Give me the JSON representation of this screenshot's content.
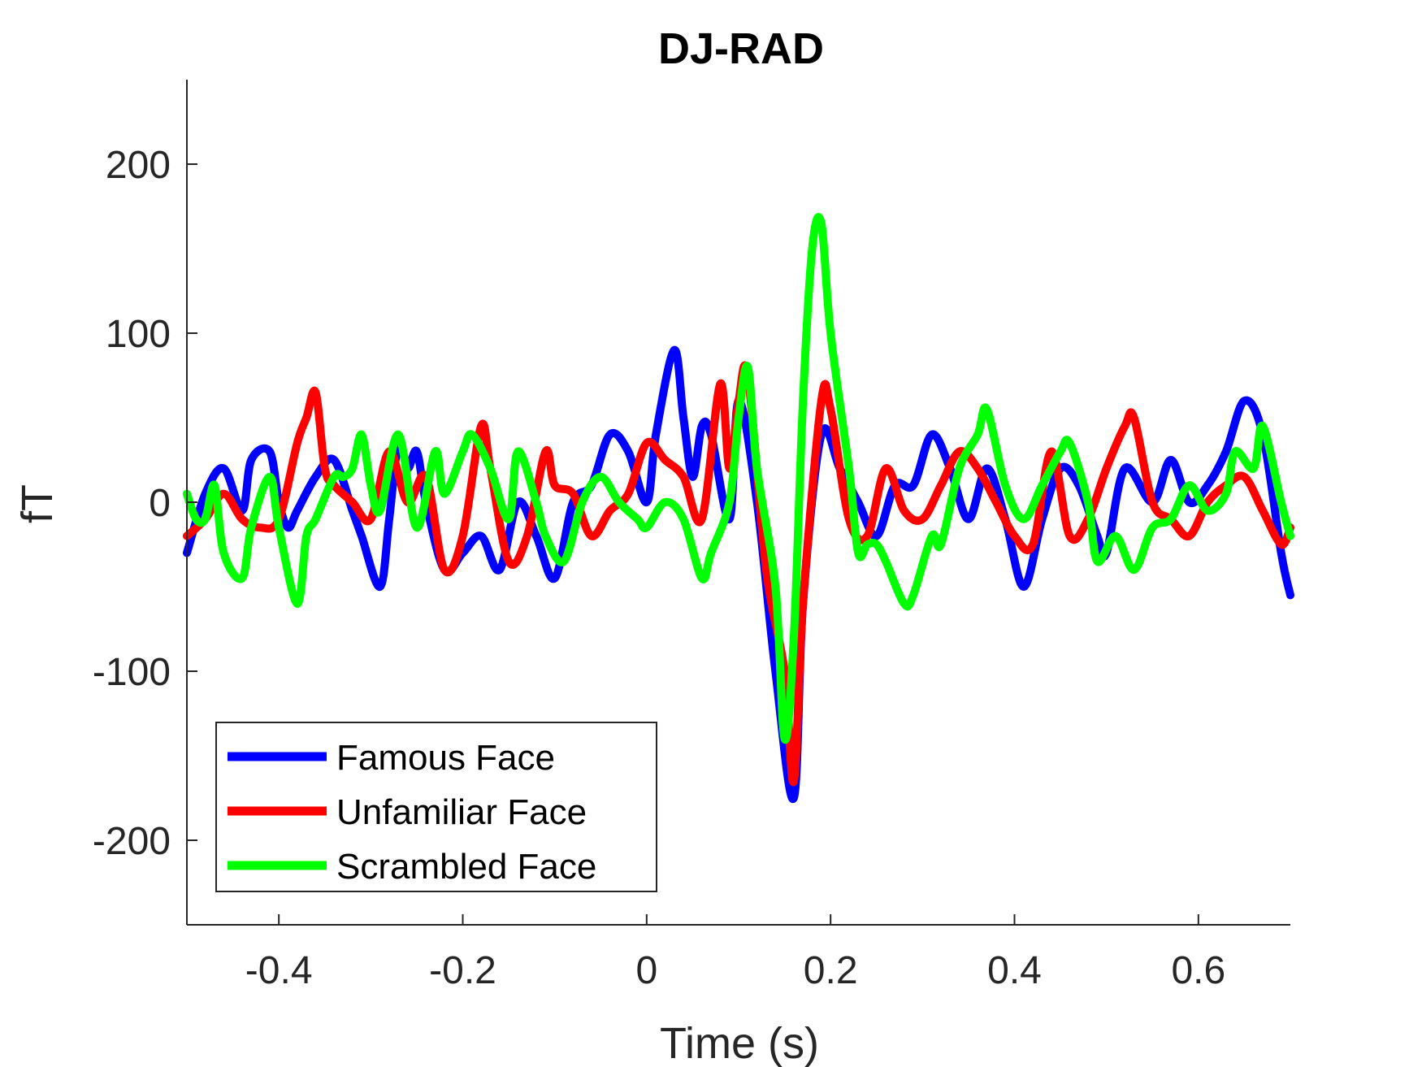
{
  "chart_data": {
    "type": "line",
    "title": "DJ-RAD",
    "xlabel": "Time (s)",
    "ylabel": "fT",
    "xlim": [
      -0.5,
      0.7
    ],
    "ylim": [
      -250,
      250
    ],
    "xticks": [
      -0.4,
      -0.2,
      0,
      0.2,
      0.4,
      0.6
    ],
    "xtick_labels": [
      "-0.4",
      "-0.2",
      "0",
      "0.2",
      "0.4",
      "0.6"
    ],
    "yticks": [
      -200,
      -100,
      0,
      100,
      200
    ],
    "ytick_labels": [
      "-200",
      "-100",
      "0",
      "100",
      "200"
    ],
    "grid": false,
    "legend_position": "bottom-left",
    "series": [
      {
        "name": "Famous Face",
        "color": "#0000ff",
        "x": [
          -0.5,
          -0.48,
          -0.46,
          -0.44,
          -0.43,
          -0.41,
          -0.4,
          -0.39,
          -0.38,
          -0.36,
          -0.34,
          -0.32,
          -0.31,
          -0.29,
          -0.28,
          -0.27,
          -0.26,
          -0.25,
          -0.24,
          -0.22,
          -0.2,
          -0.18,
          -0.16,
          -0.14,
          -0.12,
          -0.1,
          -0.08,
          -0.06,
          -0.04,
          -0.02,
          0,
          0.01,
          0.03,
          0.04,
          0.05,
          0.06,
          0.07,
          0.09,
          0.1,
          0.12,
          0.14,
          0.16,
          0.17,
          0.19,
          0.21,
          0.23,
          0.25,
          0.27,
          0.29,
          0.31,
          0.33,
          0.35,
          0.37,
          0.39,
          0.41,
          0.43,
          0.45,
          0.47,
          0.49,
          0.5,
          0.52,
          0.55,
          0.57,
          0.59,
          0.61,
          0.63,
          0.65,
          0.67,
          0.69,
          0.7
        ],
        "y": [
          -30,
          5,
          20,
          -5,
          25,
          30,
          0,
          -15,
          -5,
          15,
          25,
          -5,
          -20,
          -50,
          -10,
          35,
          20,
          30,
          0,
          -40,
          -30,
          -20,
          -40,
          0,
          -20,
          -45,
          0,
          10,
          40,
          30,
          0,
          40,
          90,
          50,
          15,
          45,
          40,
          -10,
          60,
          0,
          -100,
          -175,
          -60,
          40,
          20,
          0,
          -20,
          10,
          10,
          40,
          20,
          -10,
          20,
          -10,
          -50,
          -10,
          20,
          10,
          -20,
          -30,
          20,
          0,
          25,
          0,
          10,
          30,
          60,
          40,
          -30,
          -55
        ]
      },
      {
        "name": "Unfamiliar Face",
        "color": "#ff0000",
        "x": [
          -0.5,
          -0.48,
          -0.46,
          -0.44,
          -0.42,
          -0.4,
          -0.38,
          -0.37,
          -0.36,
          -0.35,
          -0.34,
          -0.32,
          -0.3,
          -0.28,
          -0.26,
          -0.24,
          -0.22,
          -0.2,
          -0.18,
          -0.17,
          -0.15,
          -0.13,
          -0.11,
          -0.1,
          -0.08,
          -0.06,
          -0.04,
          -0.02,
          0,
          0.02,
          0.04,
          0.06,
          0.08,
          0.09,
          0.1,
          0.11,
          0.13,
          0.15,
          0.16,
          0.17,
          0.19,
          0.2,
          0.22,
          0.24,
          0.26,
          0.28,
          0.3,
          0.32,
          0.34,
          0.36,
          0.38,
          0.4,
          0.42,
          0.44,
          0.46,
          0.48,
          0.5,
          0.52,
          0.53,
          0.55,
          0.57,
          0.59,
          0.61,
          0.63,
          0.65,
          0.67,
          0.69,
          0.7
        ],
        "y": [
          -20,
          -10,
          5,
          -10,
          -15,
          -10,
          35,
          50,
          65,
          20,
          10,
          0,
          -10,
          30,
          0,
          15,
          -40,
          -20,
          45,
          20,
          -35,
          -20,
          30,
          10,
          5,
          -20,
          -5,
          5,
          35,
          25,
          15,
          -10,
          70,
          20,
          60,
          75,
          -40,
          -100,
          -165,
          -60,
          60,
          55,
          -10,
          -20,
          20,
          -5,
          -10,
          10,
          30,
          20,
          0,
          -20,
          -25,
          30,
          -20,
          -10,
          20,
          45,
          50,
          0,
          -10,
          -20,
          0,
          10,
          15,
          -5,
          -25,
          -15
        ]
      },
      {
        "name": "Scrambled Face",
        "color": "#00ff00",
        "x": [
          -0.5,
          -0.49,
          -0.48,
          -0.47,
          -0.46,
          -0.44,
          -0.43,
          -0.41,
          -0.4,
          -0.38,
          -0.37,
          -0.36,
          -0.34,
          -0.33,
          -0.32,
          -0.31,
          -0.3,
          -0.29,
          -0.27,
          -0.25,
          -0.23,
          -0.22,
          -0.2,
          -0.19,
          -0.17,
          -0.15,
          -0.14,
          -0.12,
          -0.11,
          -0.09,
          -0.07,
          -0.05,
          -0.03,
          -0.01,
          0,
          0.02,
          0.04,
          0.06,
          0.07,
          0.09,
          0.1,
          0.11,
          0.12,
          0.14,
          0.15,
          0.16,
          0.17,
          0.18,
          0.19,
          0.2,
          0.22,
          0.23,
          0.24,
          0.25,
          0.26,
          0.28,
          0.29,
          0.31,
          0.32,
          0.34,
          0.36,
          0.37,
          0.39,
          0.41,
          0.43,
          0.45,
          0.46,
          0.48,
          0.49,
          0.51,
          0.53,
          0.55,
          0.57,
          0.59,
          0.61,
          0.63,
          0.64,
          0.66,
          0.67,
          0.69,
          0.7
        ],
        "y": [
          5,
          -10,
          -10,
          10,
          -30,
          -45,
          -15,
          15,
          -15,
          -60,
          -20,
          -10,
          15,
          15,
          20,
          40,
          10,
          -5,
          40,
          -15,
          30,
          5,
          30,
          40,
          20,
          -10,
          30,
          0,
          -20,
          -35,
          0,
          15,
          0,
          -10,
          -15,
          0,
          -10,
          -45,
          -30,
          0,
          50,
          80,
          20,
          -50,
          -140,
          -80,
          60,
          150,
          165,
          100,
          20,
          -30,
          -25,
          -25,
          -35,
          -60,
          -55,
          -20,
          -25,
          20,
          40,
          55,
          10,
          -10,
          10,
          30,
          35,
          0,
          -35,
          -20,
          -40,
          -15,
          -10,
          10,
          -5,
          5,
          30,
          20,
          45,
          0,
          -20
        ]
      }
    ]
  }
}
